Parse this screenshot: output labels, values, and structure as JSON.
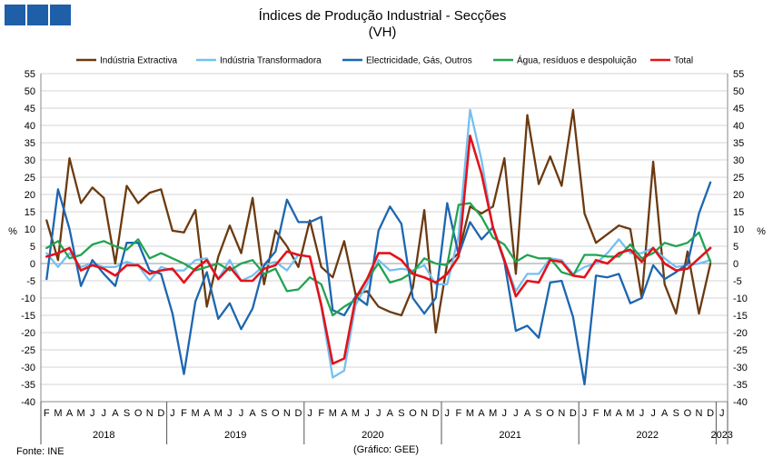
{
  "logo": {
    "squares": 3,
    "color": "#1f5fa8"
  },
  "title_line1": "Índices de Produção Industrial - Secções",
  "title_line2": "(VH)",
  "source": "Fonte: INE",
  "credit": "(Gráfico: GEE)",
  "y_unit_left": "%",
  "y_unit_right": "%",
  "chart_data": {
    "type": "line",
    "ylim": [
      -40,
      55
    ],
    "yticks": [
      -40,
      -35,
      -30,
      -25,
      -20,
      -15,
      -10,
      -5,
      0,
      5,
      10,
      15,
      20,
      25,
      30,
      35,
      40,
      45,
      50,
      55
    ],
    "month_labels": [
      "F",
      "M",
      "A",
      "M",
      "J",
      "J",
      "A",
      "S",
      "O",
      "N",
      "D",
      "J",
      "F",
      "M",
      "A",
      "M",
      "J",
      "J",
      "A",
      "S",
      "O",
      "N",
      "D",
      "J",
      "F",
      "M",
      "A",
      "M",
      "J",
      "J",
      "A",
      "S",
      "O",
      "N",
      "D",
      "J",
      "F",
      "M",
      "A",
      "M",
      "J",
      "J",
      "A",
      "S",
      "O",
      "N",
      "D",
      "J",
      "F",
      "M",
      "A",
      "M",
      "J",
      "J",
      "A",
      "S",
      "O",
      "N",
      "D",
      "J"
    ],
    "years": [
      {
        "label": "2018",
        "first": 0,
        "last": 10
      },
      {
        "label": "2019",
        "first": 11,
        "last": 22
      },
      {
        "label": "2020",
        "first": 23,
        "last": 34
      },
      {
        "label": "2021",
        "first": 35,
        "last": 46
      },
      {
        "label": "2022",
        "first": 47,
        "last": 58
      },
      {
        "label": "2023",
        "first": 59,
        "last": 59
      }
    ],
    "legend_position": "top",
    "series": [
      {
        "name": "Indústria Extractiva",
        "color": "#6b3a10",
        "values": [
          12.5,
          1.0,
          30.5,
          17.5,
          22.0,
          19.0,
          0.0,
          22.5,
          17.5,
          20.5,
          21.5,
          9.5,
          9.0,
          15.5,
          -12.5,
          2.0,
          11.0,
          3.0,
          19.0,
          -6.0,
          9.5,
          5.0,
          -1.0,
          12.5,
          -1.0,
          -4.0,
          6.5,
          -9.0,
          -8.0,
          -12.5,
          -14.0,
          -15.0,
          -7.0,
          15.5,
          -20.0,
          0.0,
          3.0,
          16.5,
          14.5,
          16.5,
          30.5,
          -3.0,
          43.0,
          23.0,
          31.0,
          22.5,
          44.5,
          14.5,
          6.0,
          8.5,
          11.0,
          10.0,
          -10.0,
          29.5,
          -6.0,
          -14.5,
          3.5,
          -14.5,
          0.0,
          null
        ]
      },
      {
        "name": "Indústria Transformadora",
        "color": "#74c0f0",
        "values": [
          3.0,
          -1.0,
          3.0,
          -1.0,
          0.0,
          -1.0,
          -1.0,
          0.5,
          -0.5,
          -5.0,
          -1.0,
          -2.0,
          -2.0,
          1.0,
          1.5,
          -4.5,
          1.0,
          -5.0,
          -3.5,
          -0.5,
          0.5,
          -2.0,
          2.5,
          2.0,
          -12.5,
          -33.0,
          -31.0,
          -12.0,
          -6.0,
          1.0,
          -2.0,
          -1.5,
          -2.0,
          -0.5,
          -6.0,
          -6.0,
          8.0,
          44.5,
          30.0,
          10.0,
          1.0,
          -8.0,
          -3.0,
          -3.0,
          1.5,
          1.0,
          -3.0,
          -1.0,
          0.0,
          3.0,
          7.0,
          3.0,
          3.0,
          4.5,
          1.5,
          -1.0,
          -0.5,
          0.0,
          1.0,
          null
        ]
      },
      {
        "name": "Electricidade, Gás, Outros",
        "color": "#1d66b0",
        "values": [
          -4.5,
          21.5,
          10.0,
          -6.5,
          1.0,
          -3.0,
          -6.5,
          6.0,
          6.0,
          -2.0,
          -3.0,
          -14.5,
          -32.0,
          -11.0,
          -2.5,
          -16.0,
          -11.5,
          -19.0,
          -13.0,
          -0.5,
          3.5,
          18.5,
          12.0,
          12.0,
          13.5,
          -13.5,
          -15.0,
          -9.5,
          -12.0,
          9.5,
          16.5,
          11.5,
          -10.0,
          -14.5,
          -10.0,
          17.5,
          2.5,
          12.0,
          7.0,
          10.5,
          0.5,
          -19.5,
          -18.0,
          -21.5,
          -5.5,
          -5.0,
          -15.5,
          -35.0,
          -3.5,
          -4.0,
          -3.0,
          -11.5,
          -10.0,
          -0.5,
          -4.5,
          -2.5,
          0.0,
          14.5,
          23.5,
          null
        ]
      },
      {
        "name": "Água, resíduos e despoluição",
        "color": "#22a352",
        "values": [
          4.5,
          6.5,
          1.5,
          2.5,
          5.5,
          6.5,
          5.0,
          4.0,
          7.0,
          1.5,
          3.0,
          1.5,
          0.0,
          -2.0,
          -1.0,
          0.0,
          -2.0,
          0.0,
          1.0,
          -3.0,
          -1.5,
          -8.0,
          -7.5,
          -4.0,
          -6.0,
          -15.0,
          -12.5,
          -10.5,
          -4.5,
          0.0,
          -5.5,
          -4.5,
          -2.5,
          1.5,
          0.0,
          -0.5,
          17.0,
          17.5,
          13.5,
          7.5,
          5.5,
          0.5,
          2.5,
          1.5,
          1.5,
          -2.5,
          -3.5,
          2.5,
          2.5,
          2.0,
          2.0,
          5.5,
          1.5,
          3.0,
          6.0,
          5.0,
          6.0,
          9.0,
          0.5,
          null
        ]
      },
      {
        "name": "Total",
        "color": "#e3121b",
        "values": [
          2.0,
          3.0,
          4.5,
          -2.0,
          -0.5,
          -1.5,
          -3.5,
          -0.5,
          -0.5,
          -3.0,
          -2.0,
          -1.5,
          -5.5,
          -1.5,
          1.0,
          -4.5,
          -1.0,
          -5.0,
          -5.0,
          -1.5,
          -0.5,
          3.5,
          2.5,
          2.0,
          -12.0,
          -29.0,
          -27.5,
          -10.0,
          -4.5,
          3.0,
          3.0,
          1.0,
          -3.0,
          -4.0,
          -5.5,
          -3.0,
          2.0,
          37.0,
          26.0,
          10.5,
          1.0,
          -9.5,
          -5.0,
          -5.5,
          1.0,
          0.5,
          -3.5,
          -4.0,
          1.0,
          0.0,
          3.0,
          4.0,
          0.5,
          4.5,
          0.0,
          -2.0,
          -1.5,
          1.5,
          4.5,
          null
        ]
      }
    ]
  }
}
